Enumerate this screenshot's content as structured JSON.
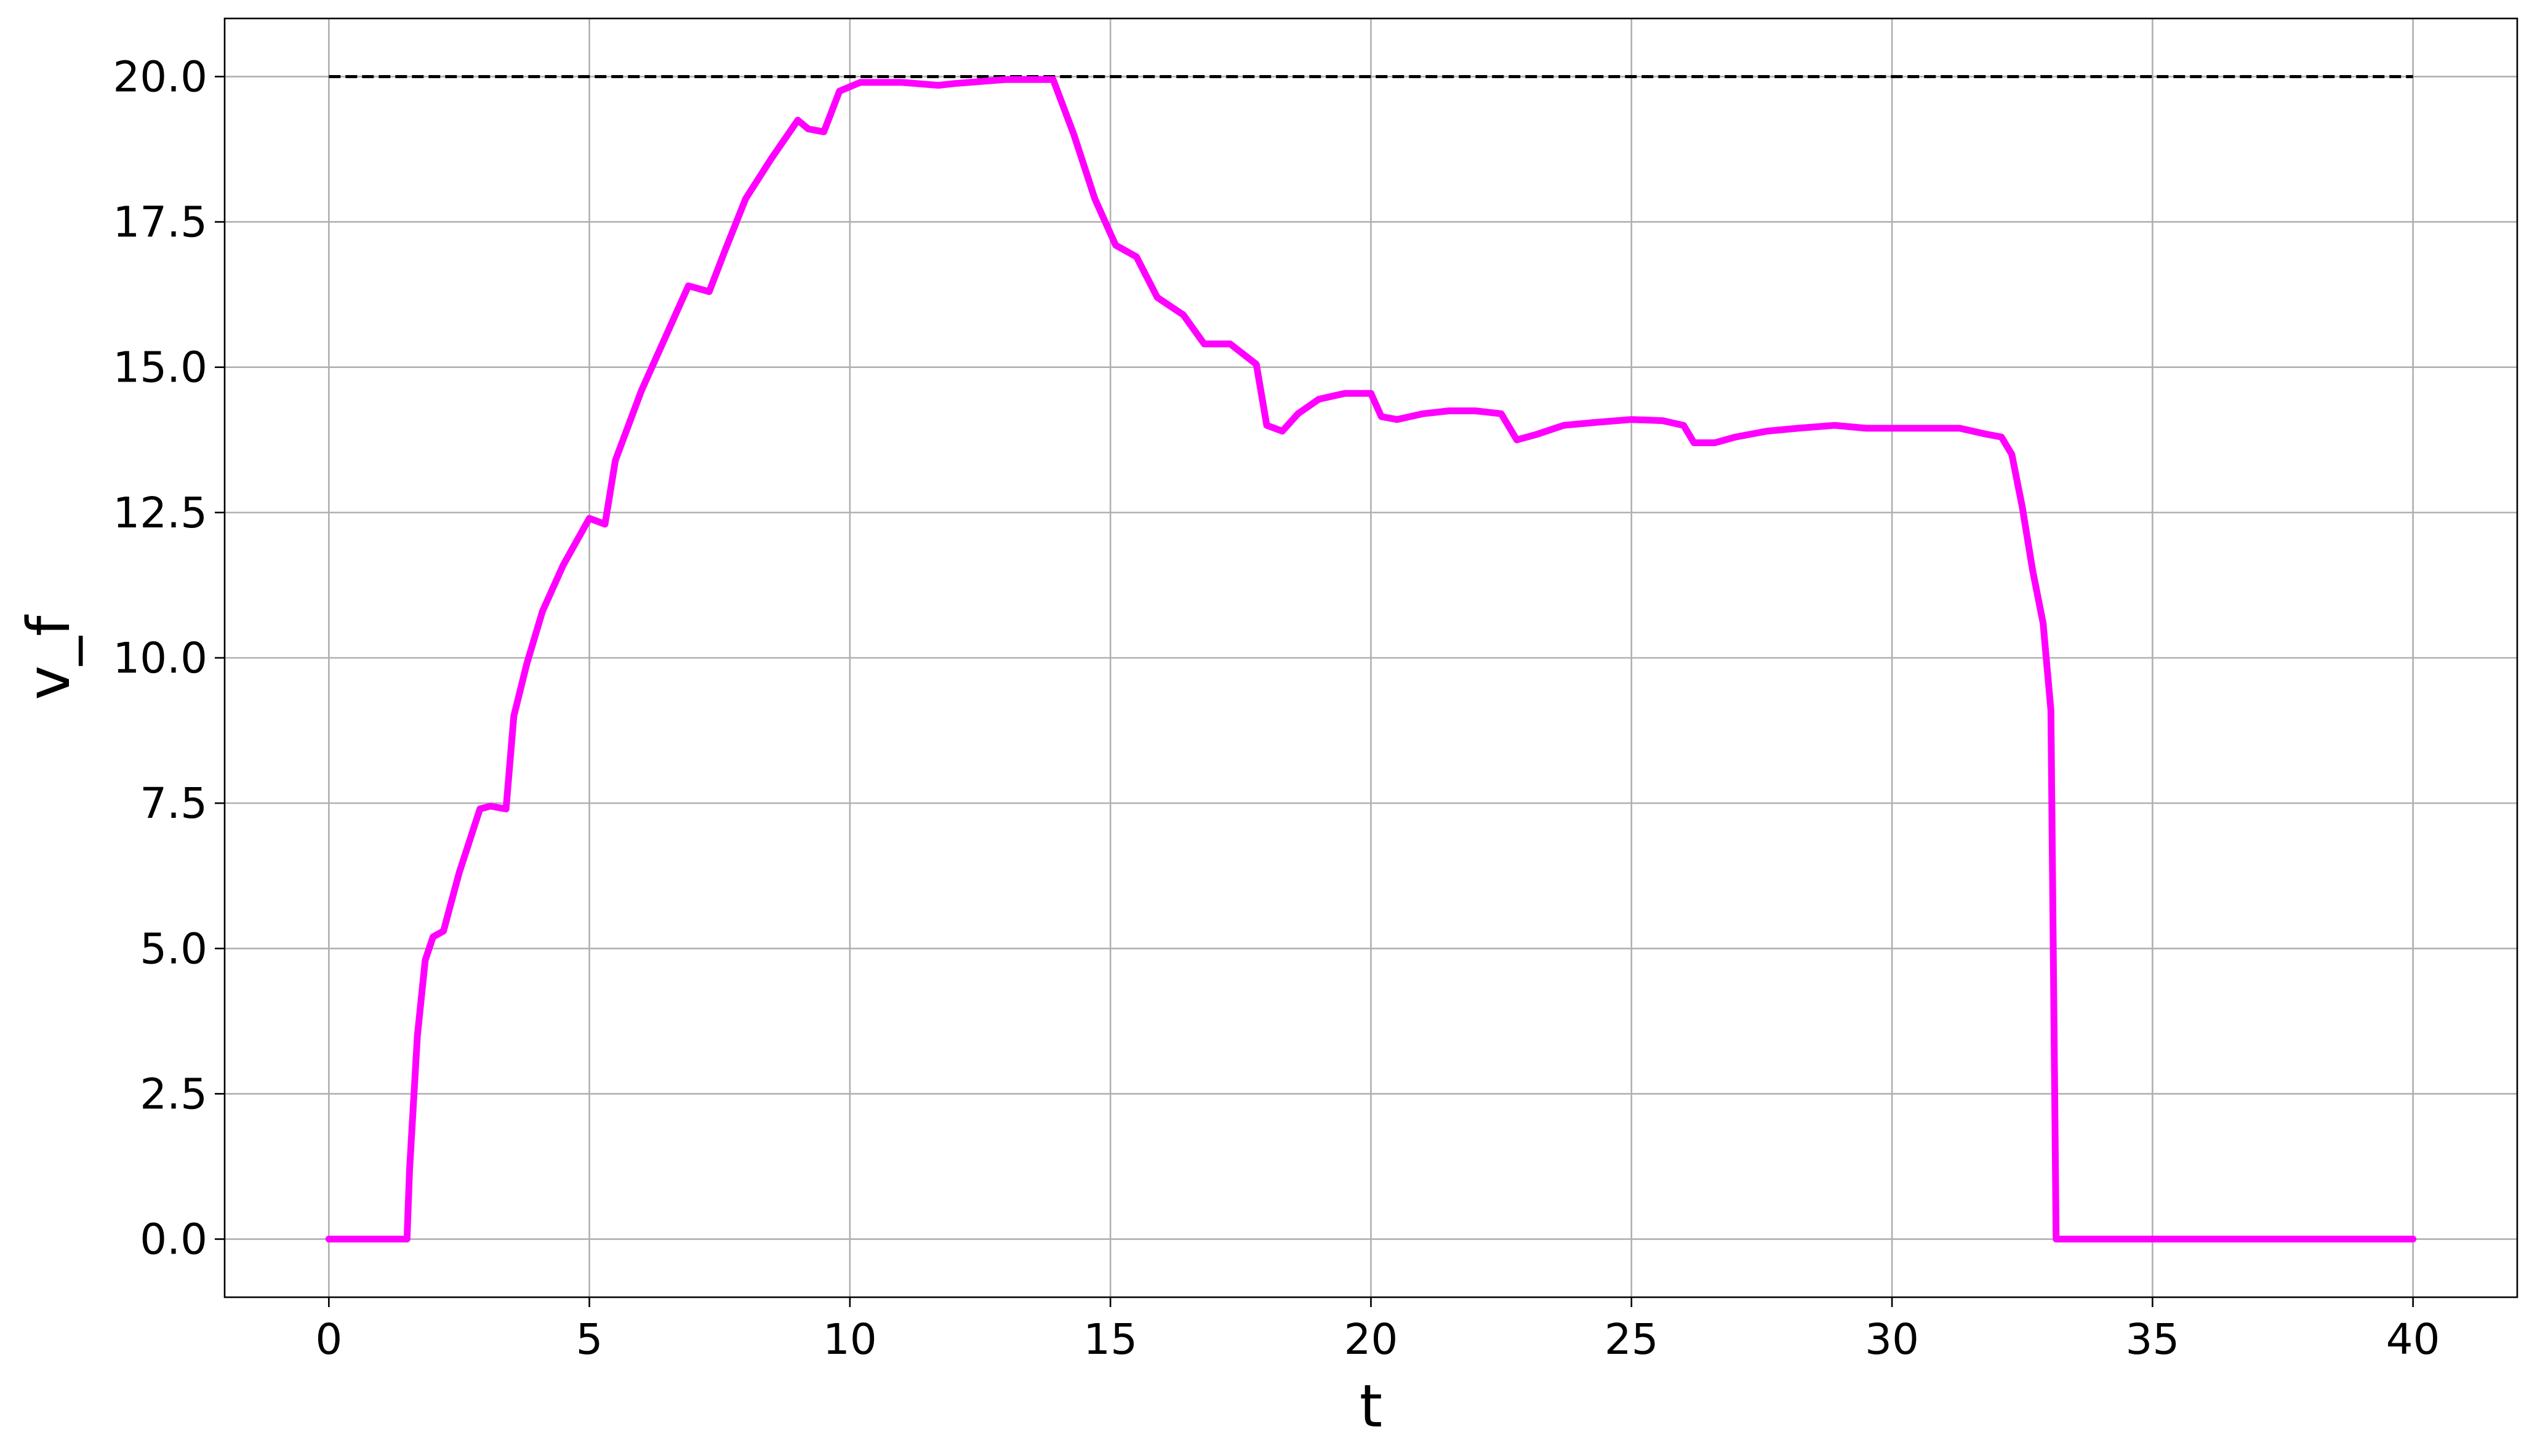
{
  "chart_data": {
    "type": "line",
    "title": "",
    "xlabel": "t",
    "ylabel": "v_f",
    "xlim": [
      -2,
      42
    ],
    "ylim": [
      -1,
      21
    ],
    "x_ticks": [
      0,
      5,
      10,
      15,
      20,
      25,
      30,
      35,
      40
    ],
    "x_tick_labels": [
      "0",
      "5",
      "10",
      "15",
      "20",
      "25",
      "30",
      "35",
      "40"
    ],
    "y_ticks": [
      0,
      2.5,
      5,
      7.5,
      10,
      12.5,
      15,
      17.5,
      20
    ],
    "y_tick_labels": [
      "0.0",
      "2.5",
      "5.0",
      "7.5",
      "10.0",
      "12.5",
      "15.0",
      "17.5",
      "20.0"
    ],
    "grid": true,
    "reference_line": {
      "x": [
        0,
        40
      ],
      "y": [
        20,
        20
      ],
      "color": "#000000",
      "style": "dashed"
    },
    "series": [
      {
        "color": "#ff00ff",
        "x": [
          0,
          1.5,
          1.55,
          1.7,
          1.85,
          2.0,
          2.2,
          2.5,
          2.9,
          3.1,
          3.4,
          3.55,
          3.8,
          4.1,
          4.5,
          5.0,
          5.3,
          5.5,
          6.0,
          6.5,
          6.9,
          7.3,
          7.6,
          8.0,
          8.5,
          9.0,
          9.2,
          9.5,
          9.8,
          10.2,
          11.0,
          11.7,
          12.0,
          13.0,
          13.9,
          14.3,
          14.7,
          15.1,
          15.5,
          15.9,
          16.4,
          16.8,
          17.3,
          17.8,
          18.0,
          18.3,
          18.6,
          19.0,
          19.5,
          20.0,
          20.2,
          20.5,
          21.0,
          21.5,
          22.0,
          22.5,
          22.8,
          23.2,
          23.7,
          24.3,
          25.0,
          25.6,
          26.0,
          26.2,
          26.6,
          27.0,
          27.6,
          28.2,
          28.9,
          29.5,
          30.1,
          30.7,
          31.3,
          31.8,
          32.1,
          32.3,
          32.5,
          32.7,
          32.9,
          33.05,
          33.15,
          33.25,
          35,
          40
        ],
        "y": [
          0,
          0,
          1.2,
          3.5,
          4.8,
          5.2,
          5.3,
          6.3,
          7.4,
          7.45,
          7.4,
          9.0,
          9.9,
          10.8,
          11.6,
          12.4,
          12.3,
          13.4,
          14.6,
          15.6,
          16.4,
          16.3,
          17.0,
          17.9,
          18.6,
          19.25,
          19.1,
          19.05,
          19.75,
          19.9,
          19.9,
          19.85,
          19.88,
          19.95,
          19.95,
          19.0,
          17.9,
          17.1,
          16.9,
          16.2,
          15.9,
          15.4,
          15.4,
          15.05,
          14.0,
          13.9,
          14.2,
          14.45,
          14.55,
          14.55,
          14.15,
          14.1,
          14.2,
          14.25,
          14.25,
          14.2,
          13.75,
          13.85,
          14.0,
          14.05,
          14.1,
          14.08,
          14.0,
          13.7,
          13.7,
          13.8,
          13.9,
          13.95,
          14.0,
          13.95,
          13.95,
          13.95,
          13.95,
          13.85,
          13.8,
          13.5,
          12.6,
          11.5,
          10.6,
          9.1,
          0,
          0,
          0,
          0
        ]
      }
    ]
  }
}
